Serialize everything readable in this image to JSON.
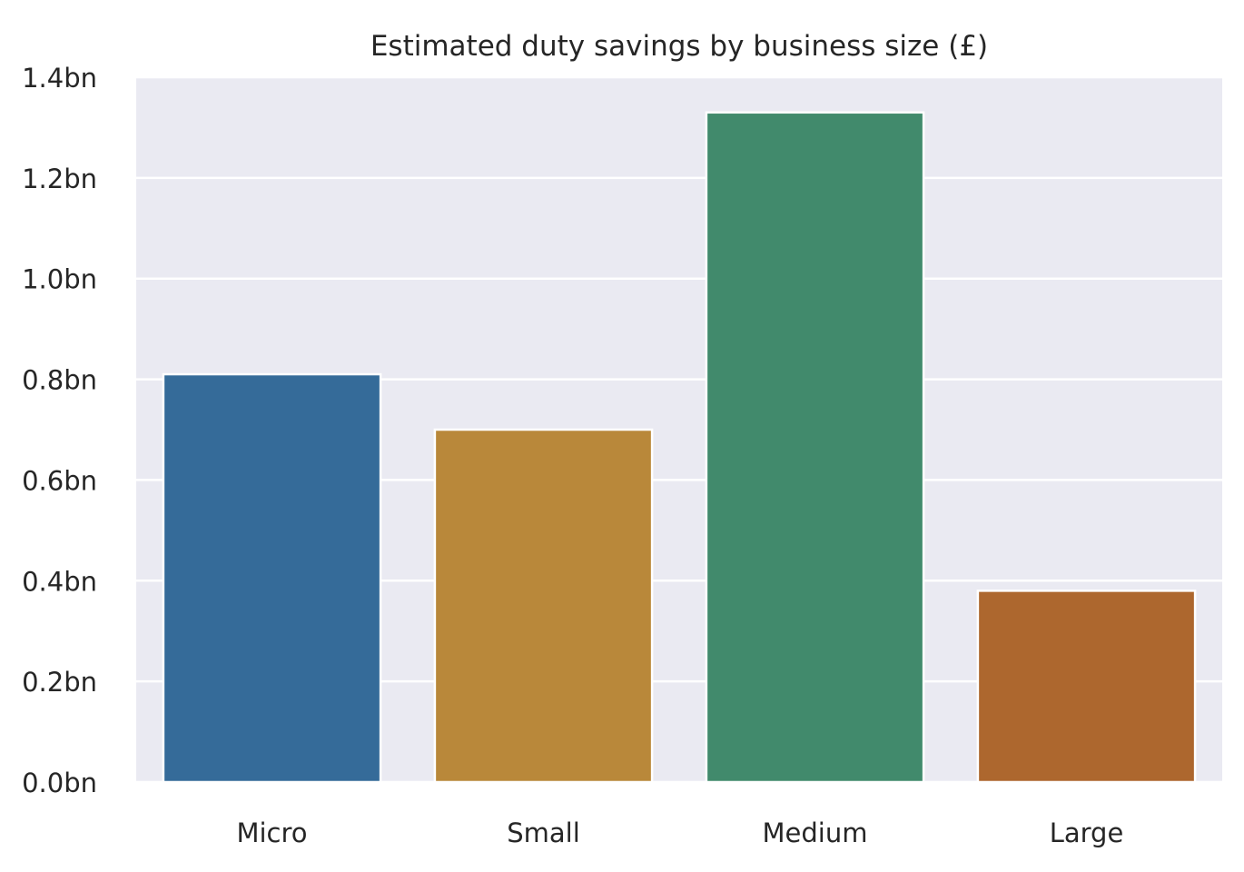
{
  "chart_data": {
    "type": "bar",
    "title": "Estimated duty savings by business size (£)",
    "xlabel": "",
    "ylabel": "",
    "categories": [
      "Micro",
      "Small",
      "Medium",
      "Large"
    ],
    "values": [
      0.81,
      0.7,
      1.33,
      0.38
    ],
    "value_unit": "bn £",
    "colors": [
      "#356b99",
      "#b9883a",
      "#418a6c",
      "#ad672e"
    ],
    "ylim": [
      0,
      1.4
    ],
    "yticks": [
      0,
      0.2,
      0.4,
      0.6,
      0.8,
      1.0,
      1.2,
      1.4
    ],
    "ytick_labels": [
      "0.0bn",
      "0.2bn",
      "0.4bn",
      "0.6bn",
      "0.8bn",
      "1.0bn",
      "1.2bn",
      "1.4bn"
    ],
    "grid": true,
    "background": "#eaeaf2"
  }
}
